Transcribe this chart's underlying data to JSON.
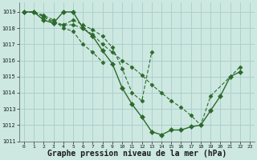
{
  "bg_color": "#cce8e0",
  "grid_color": "#aacccc",
  "line_color": "#2d6a2d",
  "marker_color": "#2d6a2d",
  "xlabel": "Graphe pression niveau de la mer (hPa)",
  "xlabel_fontsize": 7.0,
  "xlim": [
    -0.5,
    23.5
  ],
  "ylim": [
    1011.0,
    1019.6
  ],
  "yticks": [
    1011,
    1012,
    1013,
    1014,
    1015,
    1016,
    1017,
    1018,
    1019
  ],
  "xticks": [
    0,
    1,
    2,
    3,
    4,
    5,
    6,
    7,
    8,
    9,
    10,
    11,
    12,
    13,
    14,
    15,
    16,
    17,
    18,
    19,
    20,
    21,
    22,
    23
  ],
  "series": [
    {
      "x": [
        0,
        1,
        2,
        3,
        4,
        5,
        6,
        7,
        8,
        9,
        10,
        11,
        12,
        13,
        14,
        15,
        16,
        17,
        18,
        19,
        20,
        21,
        22
      ],
      "y": [
        1019.0,
        1019.0,
        1018.5,
        1018.3,
        1019.0,
        1019.0,
        1018.0,
        1017.5,
        1016.6,
        1015.8,
        1014.3,
        1013.3,
        1012.5,
        1011.6,
        1011.4,
        1011.7,
        1011.7,
        1011.9,
        1012.0,
        1012.9,
        1013.8,
        1015.0,
        1015.3
      ],
      "linestyle": "solid",
      "marker": true,
      "linewidth": 1.0,
      "markersize": 3.0
    },
    {
      "x": [
        0,
        1,
        2,
        3,
        4,
        5,
        6,
        7,
        8,
        9,
        10,
        11,
        12,
        13,
        14,
        15,
        16,
        17,
        18,
        19,
        22
      ],
      "y": [
        1019.0,
        1019.0,
        1018.7,
        1018.4,
        1018.2,
        1018.2,
        1018.0,
        1017.6,
        1017.0,
        1016.5,
        1016.0,
        1015.6,
        1015.1,
        1014.5,
        1014.0,
        1013.5,
        1013.1,
        1012.6,
        1012.0,
        1013.8,
        1015.6
      ],
      "linestyle": "dashed",
      "marker": true,
      "linewidth": 0.8,
      "markersize": 2.5
    },
    {
      "x": [
        0,
        1,
        2,
        3,
        4,
        5,
        6,
        7,
        8,
        9,
        10,
        11,
        12,
        13
      ],
      "y": [
        1019.0,
        1019.0,
        1018.7,
        1018.3,
        1018.2,
        1018.5,
        1018.2,
        1017.9,
        1017.5,
        1016.8,
        1015.5,
        1014.0,
        1013.5,
        1016.5
      ],
      "linestyle": "dashed",
      "marker": true,
      "linewidth": 0.8,
      "markersize": 2.5
    },
    {
      "x": [
        0,
        1,
        2,
        3,
        4,
        5,
        6,
        7,
        8
      ],
      "y": [
        1019.0,
        1019.0,
        1018.8,
        1018.5,
        1018.0,
        1017.8,
        1017.0,
        1016.5,
        1015.9
      ],
      "linestyle": "dashed",
      "marker": true,
      "linewidth": 0.8,
      "markersize": 2.5
    }
  ]
}
